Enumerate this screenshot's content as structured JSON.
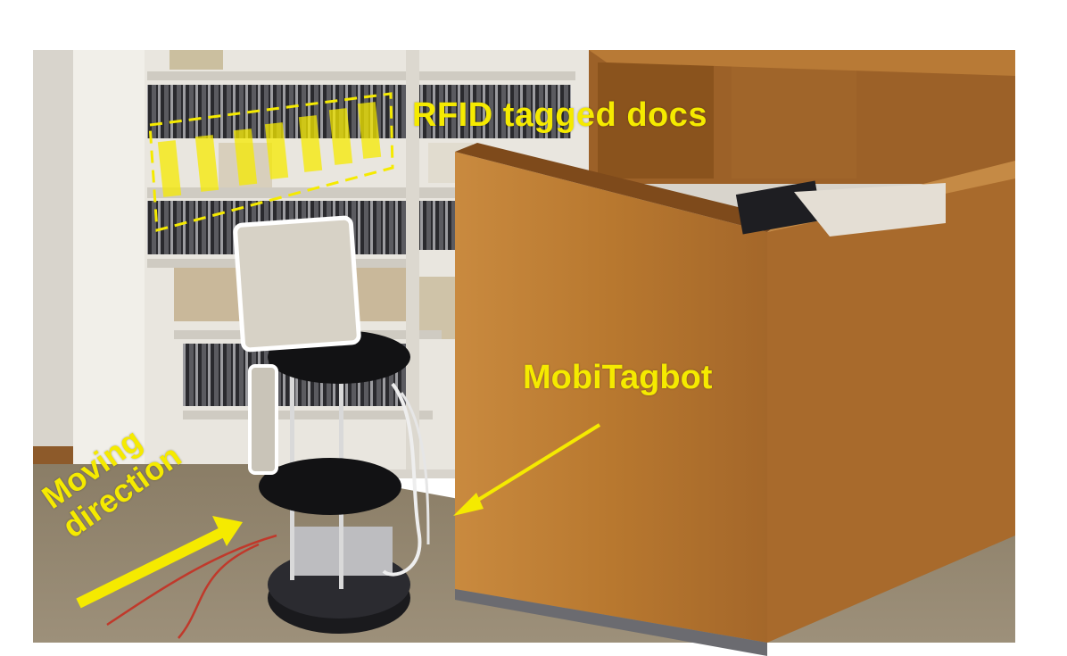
{
  "annotations": {
    "rfid_label": "RFID tagged docs",
    "robot_label": "MobiTagbot",
    "direction_line1": "Moving",
    "direction_line2": "direction"
  },
  "colors": {
    "annotation": "#f5ea00",
    "wood": "#b9772e",
    "wood_dark": "#8a531d",
    "shelf": "#e6e3dc",
    "carpet": "#8f826c",
    "wall": "#d9d5ce"
  }
}
